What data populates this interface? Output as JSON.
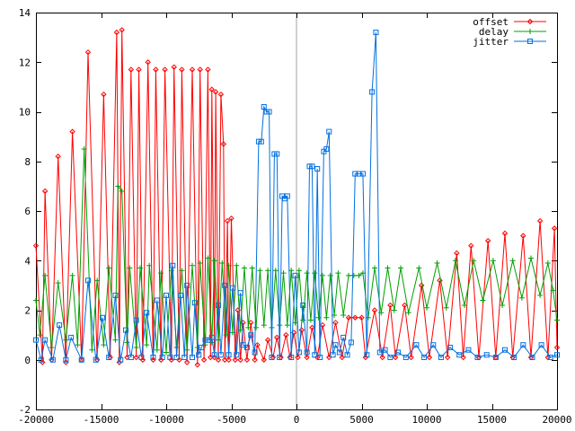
{
  "chart_data": {
    "type": "line",
    "title": "",
    "xlabel": "",
    "ylabel": "",
    "xlim": [
      -20000,
      20000
    ],
    "ylim": [
      -2,
      14
    ],
    "x_ticks": [
      -20000,
      -15000,
      -10000,
      -5000,
      0,
      5000,
      10000,
      15000,
      20000
    ],
    "y_ticks": [
      -2,
      0,
      2,
      4,
      6,
      8,
      10,
      12,
      14
    ],
    "x_tick_labels": [
      "-20000",
      "-15000",
      "-10000",
      "-5000",
      "0",
      "5000",
      "10000",
      "15000",
      "20000"
    ],
    "y_tick_labels": [
      "-2",
      "0",
      "2",
      "4",
      "6",
      "8",
      "10",
      "12",
      "14"
    ],
    "grid": false,
    "zero_line_x": true,
    "legend": {
      "position": "top-right",
      "entries": [
        "offset",
        "delay",
        "jitter"
      ]
    },
    "series": [
      {
        "name": "offset",
        "color": "#ff0000",
        "marker": "diamond",
        "points": [
          [
            -20000,
            4.6
          ],
          [
            -19500,
            -0.1
          ],
          [
            -19300,
            6.8
          ],
          [
            -18800,
            0.0
          ],
          [
            -18300,
            8.2
          ],
          [
            -17700,
            -0.1
          ],
          [
            -17200,
            9.2
          ],
          [
            -16500,
            0.0
          ],
          [
            -16000,
            12.4
          ],
          [
            -15300,
            0.0
          ],
          [
            -14800,
            10.7
          ],
          [
            -14300,
            0.1
          ],
          [
            -13800,
            13.2
          ],
          [
            -13600,
            -0.1
          ],
          [
            -13400,
            13.3
          ],
          [
            -13000,
            0.1
          ],
          [
            -12700,
            11.7
          ],
          [
            -12300,
            0.1
          ],
          [
            -12100,
            11.7
          ],
          [
            -11800,
            0.0
          ],
          [
            -11400,
            12.0
          ],
          [
            -11000,
            0.0
          ],
          [
            -10800,
            11.7
          ],
          [
            -10400,
            0.0
          ],
          [
            -10100,
            11.7
          ],
          [
            -9600,
            0.0
          ],
          [
            -9400,
            11.8
          ],
          [
            -9000,
            0.0
          ],
          [
            -8800,
            11.7
          ],
          [
            -8400,
            -0.1
          ],
          [
            -8000,
            11.7
          ],
          [
            -7600,
            -0.2
          ],
          [
            -7400,
            11.7
          ],
          [
            -7100,
            0.0
          ],
          [
            -6800,
            11.7
          ],
          [
            -6600,
            0.1
          ],
          [
            -6500,
            10.9
          ],
          [
            -6300,
            0.1
          ],
          [
            -6200,
            10.8
          ],
          [
            -6000,
            0.0
          ],
          [
            -5800,
            10.7
          ],
          [
            -5600,
            8.7
          ],
          [
            -5500,
            0.0
          ],
          [
            -5300,
            5.6
          ],
          [
            -5200,
            0.0
          ],
          [
            -5000,
            5.7
          ],
          [
            -4700,
            0.0
          ],
          [
            -4500,
            2.0
          ],
          [
            -4300,
            0.0
          ],
          [
            -4100,
            1.5
          ],
          [
            -3800,
            0.0
          ],
          [
            -3500,
            1.5
          ],
          [
            -3200,
            0.0
          ],
          [
            -3000,
            0.6
          ],
          [
            -2500,
            0.0
          ],
          [
            -2200,
            0.8
          ],
          [
            -1800,
            0.1
          ],
          [
            -1500,
            0.9
          ],
          [
            -1200,
            0.1
          ],
          [
            -800,
            1.0
          ],
          [
            -500,
            0.1
          ],
          [
            -200,
            1.1
          ],
          [
            100,
            0.1
          ],
          [
            400,
            1.2
          ],
          [
            800,
            0.1
          ],
          [
            1200,
            1.3
          ],
          [
            1600,
            0.1
          ],
          [
            2000,
            1.4
          ],
          [
            2500,
            0.1
          ],
          [
            3000,
            1.5
          ],
          [
            3500,
            0.1
          ],
          [
            4000,
            1.7
          ],
          [
            4500,
            1.7
          ],
          [
            5000,
            1.7
          ],
          [
            5300,
            0.1
          ],
          [
            6000,
            2.0
          ],
          [
            6600,
            0.1
          ],
          [
            7200,
            2.2
          ],
          [
            7600,
            0.1
          ],
          [
            8300,
            2.2
          ],
          [
            8800,
            0.1
          ],
          [
            9600,
            3.0
          ],
          [
            10200,
            0.1
          ],
          [
            11000,
            3.2
          ],
          [
            11600,
            0.1
          ],
          [
            12300,
            4.3
          ],
          [
            12800,
            0.1
          ],
          [
            13400,
            4.6
          ],
          [
            14000,
            0.1
          ],
          [
            14700,
            4.8
          ],
          [
            15300,
            0.1
          ],
          [
            16000,
            5.1
          ],
          [
            16600,
            0.1
          ],
          [
            17400,
            5.0
          ],
          [
            18000,
            0.1
          ],
          [
            18700,
            5.6
          ],
          [
            19300,
            0.1
          ],
          [
            19800,
            5.3
          ],
          [
            20000,
            0.5
          ]
        ]
      },
      {
        "name": "delay",
        "color": "#00a000",
        "marker": "plus",
        "points": [
          [
            -20000,
            2.4
          ],
          [
            -19700,
            1.0
          ],
          [
            -19300,
            3.4
          ],
          [
            -18800,
            0.5
          ],
          [
            -18300,
            3.1
          ],
          [
            -17700,
            0.8
          ],
          [
            -17200,
            3.4
          ],
          [
            -16800,
            0.6
          ],
          [
            -16300,
            8.5
          ],
          [
            -15700,
            0.4
          ],
          [
            -15300,
            3.2
          ],
          [
            -14800,
            0.6
          ],
          [
            -14400,
            3.7
          ],
          [
            -13900,
            0.8
          ],
          [
            -13700,
            7.0
          ],
          [
            -13400,
            6.8
          ],
          [
            -13000,
            0.7
          ],
          [
            -12800,
            3.7
          ],
          [
            -12300,
            0.5
          ],
          [
            -12000,
            3.7
          ],
          [
            -11500,
            0.6
          ],
          [
            -11300,
            3.8
          ],
          [
            -10700,
            0.4
          ],
          [
            -10400,
            3.5
          ],
          [
            -10000,
            0.3
          ],
          [
            -9600,
            3.6
          ],
          [
            -9200,
            0.5
          ],
          [
            -8800,
            3.6
          ],
          [
            -8400,
            0.4
          ],
          [
            -8000,
            3.8
          ],
          [
            -7600,
            0.5
          ],
          [
            -7400,
            3.9
          ],
          [
            -7000,
            0.6
          ],
          [
            -6800,
            4.1
          ],
          [
            -6500,
            0.7
          ],
          [
            -6300,
            4.0
          ],
          [
            -6000,
            0.8
          ],
          [
            -5700,
            3.9
          ],
          [
            -5400,
            1.0
          ],
          [
            -5200,
            3.8
          ],
          [
            -4900,
            1.1
          ],
          [
            -4600,
            3.8
          ],
          [
            -4300,
            1.2
          ],
          [
            -4000,
            3.7
          ],
          [
            -3700,
            1.3
          ],
          [
            -3400,
            3.7
          ],
          [
            -3100,
            1.3
          ],
          [
            -2800,
            3.6
          ],
          [
            -2500,
            1.4
          ],
          [
            -2200,
            3.6
          ],
          [
            -1900,
            1.3
          ],
          [
            -1600,
            3.6
          ],
          [
            -1300,
            1.4
          ],
          [
            -1000,
            3.5
          ],
          [
            -700,
            1.4
          ],
          [
            -400,
            3.6
          ],
          [
            -100,
            1.5
          ],
          [
            200,
            3.6
          ],
          [
            500,
            1.6
          ],
          [
            800,
            3.5
          ],
          [
            1100,
            1.6
          ],
          [
            1400,
            3.5
          ],
          [
            1700,
            1.7
          ],
          [
            2000,
            3.4
          ],
          [
            2300,
            1.7
          ],
          [
            2600,
            3.4
          ],
          [
            2900,
            1.8
          ],
          [
            3200,
            3.5
          ],
          [
            3600,
            1.8
          ],
          [
            4000,
            3.4
          ],
          [
            4400,
            3.4
          ],
          [
            4800,
            3.4
          ],
          [
            5100,
            3.5
          ],
          [
            5500,
            1.7
          ],
          [
            6000,
            3.7
          ],
          [
            6500,
            1.9
          ],
          [
            7000,
            3.7
          ],
          [
            7500,
            2.0
          ],
          [
            8000,
            3.7
          ],
          [
            8600,
            1.9
          ],
          [
            9400,
            3.7
          ],
          [
            10000,
            2.1
          ],
          [
            10800,
            3.9
          ],
          [
            11500,
            2.1
          ],
          [
            12200,
            4.0
          ],
          [
            12900,
            2.2
          ],
          [
            13600,
            4.0
          ],
          [
            14300,
            2.4
          ],
          [
            15100,
            4.0
          ],
          [
            15800,
            2.2
          ],
          [
            16600,
            4.0
          ],
          [
            17300,
            2.5
          ],
          [
            18000,
            4.1
          ],
          [
            18700,
            2.6
          ],
          [
            19300,
            3.9
          ],
          [
            19700,
            2.8
          ],
          [
            20000,
            1.6
          ]
        ]
      },
      {
        "name": "jitter",
        "color": "#0070e0",
        "marker": "square",
        "points": [
          [
            -20000,
            0.8
          ],
          [
            -19600,
            0.0
          ],
          [
            -19300,
            0.8
          ],
          [
            -18700,
            0.0
          ],
          [
            -18200,
            1.4
          ],
          [
            -17700,
            0.0
          ],
          [
            -17300,
            0.9
          ],
          [
            -16500,
            0.0
          ],
          [
            -16000,
            3.2
          ],
          [
            -15400,
            0.0
          ],
          [
            -14900,
            1.7
          ],
          [
            -14400,
            0.1
          ],
          [
            -13900,
            2.6
          ],
          [
            -13500,
            0.0
          ],
          [
            -13100,
            1.2
          ],
          [
            -12700,
            0.1
          ],
          [
            -12300,
            1.6
          ],
          [
            -11900,
            0.1
          ],
          [
            -11500,
            1.9
          ],
          [
            -11000,
            0.1
          ],
          [
            -10700,
            2.4
          ],
          [
            -10300,
            0.1
          ],
          [
            -10000,
            2.6
          ],
          [
            -9700,
            0.1
          ],
          [
            -9500,
            3.8
          ],
          [
            -9200,
            0.1
          ],
          [
            -8900,
            2.6
          ],
          [
            -8600,
            0.1
          ],
          [
            -8400,
            3.0
          ],
          [
            -8000,
            0.1
          ],
          [
            -7800,
            2.3
          ],
          [
            -7500,
            0.2
          ],
          [
            -7300,
            0.5
          ],
          [
            -7000,
            0.8
          ],
          [
            -6800,
            0.8
          ],
          [
            -6500,
            0.9
          ],
          [
            -6300,
            0.2
          ],
          [
            -6000,
            2.2
          ],
          [
            -5800,
            0.2
          ],
          [
            -5500,
            3.0
          ],
          [
            -5200,
            0.2
          ],
          [
            -4900,
            2.9
          ],
          [
            -4600,
            0.2
          ],
          [
            -4300,
            2.7
          ],
          [
            -4100,
            0.6
          ],
          [
            -3800,
            0.5
          ],
          [
            -3500,
            1.0
          ],
          [
            -3200,
            0.3
          ],
          [
            -2900,
            8.8
          ],
          [
            -2700,
            8.8
          ],
          [
            -2500,
            10.2
          ],
          [
            -2300,
            10.0
          ],
          [
            -2100,
            10.0
          ],
          [
            -1900,
            0.1
          ],
          [
            -1700,
            8.3
          ],
          [
            -1500,
            8.3
          ],
          [
            -1300,
            0.1
          ],
          [
            -1100,
            6.6
          ],
          [
            -900,
            6.5
          ],
          [
            -700,
            6.6
          ],
          [
            -400,
            0.1
          ],
          [
            -100,
            3.4
          ],
          [
            200,
            0.3
          ],
          [
            500,
            2.2
          ],
          [
            800,
            0.3
          ],
          [
            1000,
            7.8
          ],
          [
            1200,
            7.8
          ],
          [
            1400,
            0.2
          ],
          [
            1600,
            7.7
          ],
          [
            1800,
            0.1
          ],
          [
            2100,
            8.4
          ],
          [
            2300,
            8.5
          ],
          [
            2500,
            9.2
          ],
          [
            2800,
            0.2
          ],
          [
            3000,
            0.6
          ],
          [
            3300,
            0.3
          ],
          [
            3600,
            0.9
          ],
          [
            3900,
            0.2
          ],
          [
            4200,
            0.7
          ],
          [
            4500,
            7.5
          ],
          [
            4800,
            7.5
          ],
          [
            5100,
            7.5
          ],
          [
            5400,
            0.2
          ],
          [
            5800,
            10.8
          ],
          [
            6100,
            13.2
          ],
          [
            6400,
            0.3
          ],
          [
            6800,
            0.4
          ],
          [
            7200,
            0.1
          ],
          [
            7800,
            0.3
          ],
          [
            8400,
            0.1
          ],
          [
            9200,
            0.6
          ],
          [
            9800,
            0.1
          ],
          [
            10500,
            0.6
          ],
          [
            11100,
            0.1
          ],
          [
            11800,
            0.5
          ],
          [
            12500,
            0.2
          ],
          [
            13200,
            0.4
          ],
          [
            13900,
            0.1
          ],
          [
            14600,
            0.2
          ],
          [
            15300,
            0.1
          ],
          [
            16000,
            0.4
          ],
          [
            16700,
            0.1
          ],
          [
            17400,
            0.6
          ],
          [
            18100,
            0.1
          ],
          [
            18800,
            0.6
          ],
          [
            19500,
            0.1
          ],
          [
            20000,
            0.2
          ]
        ]
      }
    ]
  }
}
